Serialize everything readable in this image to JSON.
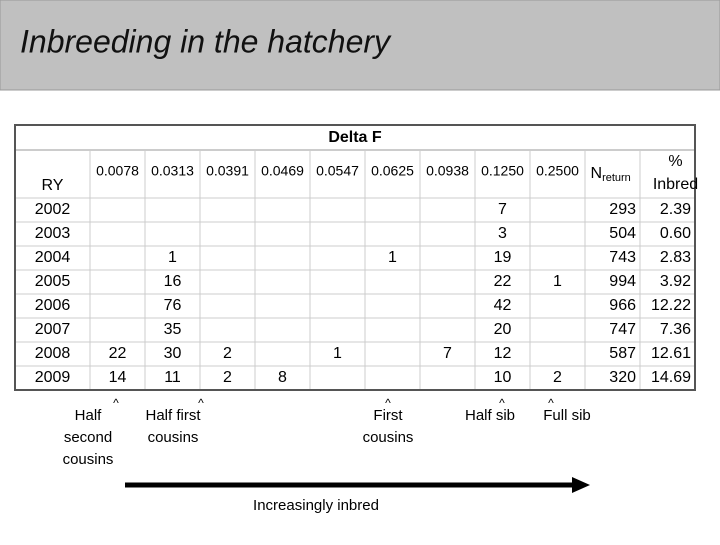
{
  "header": {
    "title": "Inbreeding in the hatchery"
  },
  "table": {
    "group_header": "Delta F",
    "year_header": "RY",
    "delta_columns": [
      "0.0078",
      "0.0313",
      "0.0391",
      "0.0469",
      "0.0547",
      "0.0625",
      "0.0938",
      "0.1250",
      "0.2500"
    ],
    "n_header": {
      "main": "N",
      "sub": "return"
    },
    "pct_header": [
      "%",
      "Inbred"
    ],
    "rows": [
      [
        "2002",
        null,
        null,
        null,
        null,
        null,
        null,
        null,
        "7",
        null,
        "293",
        "2.39"
      ],
      [
        "2003",
        null,
        null,
        null,
        null,
        null,
        null,
        null,
        "3",
        null,
        "504",
        "0.60"
      ],
      [
        "2004",
        null,
        "1",
        null,
        null,
        null,
        "1",
        null,
        "19",
        null,
        "743",
        "2.83"
      ],
      [
        "2005",
        null,
        "16",
        null,
        null,
        null,
        null,
        null,
        "22",
        "1",
        "994",
        "3.92"
      ],
      [
        "2006",
        null,
        "76",
        null,
        null,
        null,
        null,
        null,
        "42",
        null,
        "966",
        "12.22"
      ],
      [
        "2007",
        null,
        "35",
        null,
        null,
        null,
        null,
        null,
        "20",
        null,
        "747",
        "7.36"
      ],
      [
        "2008",
        "22",
        "30",
        "2",
        null,
        "1",
        null,
        "7",
        "12",
        null,
        "587",
        "12.61"
      ],
      [
        "2009",
        "14",
        "11",
        "2",
        "8",
        null,
        null,
        null,
        "10",
        "2",
        "320",
        "14.69"
      ]
    ]
  },
  "annotations": [
    {
      "marker": "^",
      "lines": [
        "Half",
        "second",
        "cousins"
      ]
    },
    {
      "marker": "^",
      "lines": [
        "Half first",
        "cousins"
      ]
    },
    {
      "marker": "^",
      "lines": [
        "First",
        "cousins"
      ]
    },
    {
      "marker": "^",
      "lines": [
        "Half sib"
      ]
    },
    {
      "marker": "^",
      "lines": [
        "Full sib"
      ]
    }
  ],
  "arrow_label": "Increasingly inbred"
}
